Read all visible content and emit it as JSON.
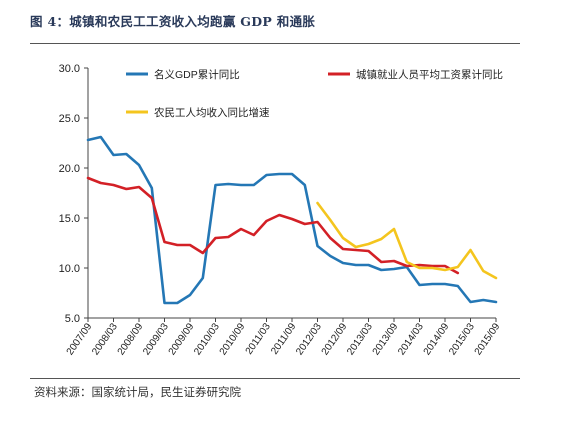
{
  "figure": {
    "title": "图 4：城镇和农民工工资收入均跑赢 GDP 和通胀",
    "source": "资料来源：国家统计局，民生证券研究院"
  },
  "chart_data": {
    "type": "line",
    "ylim": [
      5.0,
      30.0
    ],
    "yticks": [
      "5.0",
      "10.0",
      "15.0",
      "20.0",
      "25.0",
      "30.0"
    ],
    "x": [
      "2007/09",
      "2007/12",
      "2008/03",
      "2008/06",
      "2008/09",
      "2008/12",
      "2009/03",
      "2009/06",
      "2009/09",
      "2009/12",
      "2010/03",
      "2010/06",
      "2010/09",
      "2010/12",
      "2011/03",
      "2011/06",
      "2011/09",
      "2011/12",
      "2012/03",
      "2012/06",
      "2012/09",
      "2012/12",
      "2013/03",
      "2013/06",
      "2013/09",
      "2013/12",
      "2014/03",
      "2014/06",
      "2014/09",
      "2014/12",
      "2015/03",
      "2015/06",
      "2015/09"
    ],
    "xtick_labels": [
      "2007/09",
      "2008/03",
      "2008/09",
      "2009/03",
      "2009/09",
      "2010/03",
      "2010/09",
      "2011/03",
      "2011/09",
      "2012/03",
      "2012/09",
      "2013/03",
      "2013/09",
      "2014/03",
      "2014/09",
      "2015/03",
      "2015/09"
    ],
    "grid": false,
    "legend_position": "top",
    "series": [
      {
        "name": "名义GDP累计同比",
        "color": "#2477b5",
        "values": [
          22.8,
          23.1,
          21.3,
          21.4,
          20.3,
          18.0,
          6.5,
          6.5,
          7.3,
          9.0,
          18.3,
          18.4,
          18.3,
          18.3,
          19.3,
          19.4,
          19.4,
          18.3,
          12.2,
          11.2,
          10.5,
          10.3,
          10.3,
          9.8,
          9.9,
          10.1,
          8.3,
          8.4,
          8.4,
          8.2,
          6.6,
          6.8,
          6.6
        ]
      },
      {
        "name": "城镇就业人员平均工资累计同比",
        "color": "#d32026",
        "values": [
          19.0,
          18.5,
          18.3,
          17.9,
          18.1,
          17.0,
          12.6,
          12.3,
          12.3,
          11.5,
          13.0,
          13.1,
          13.9,
          13.3,
          14.7,
          15.3,
          14.9,
          14.4,
          14.6,
          13.0,
          11.9,
          11.8,
          11.7,
          10.6,
          10.7,
          10.2,
          10.3,
          10.2,
          10.2,
          9.5,
          null,
          null,
          null
        ]
      },
      {
        "name": "农民工人均收入同比增速",
        "color": "#f4c51e",
        "values": [
          null,
          null,
          null,
          null,
          null,
          null,
          null,
          null,
          null,
          null,
          null,
          null,
          null,
          null,
          null,
          null,
          null,
          null,
          16.5,
          14.8,
          13.0,
          12.1,
          12.4,
          12.9,
          13.9,
          10.6,
          10.0,
          10.0,
          9.8,
          10.1,
          11.8,
          9.7,
          9.0
        ]
      }
    ]
  }
}
